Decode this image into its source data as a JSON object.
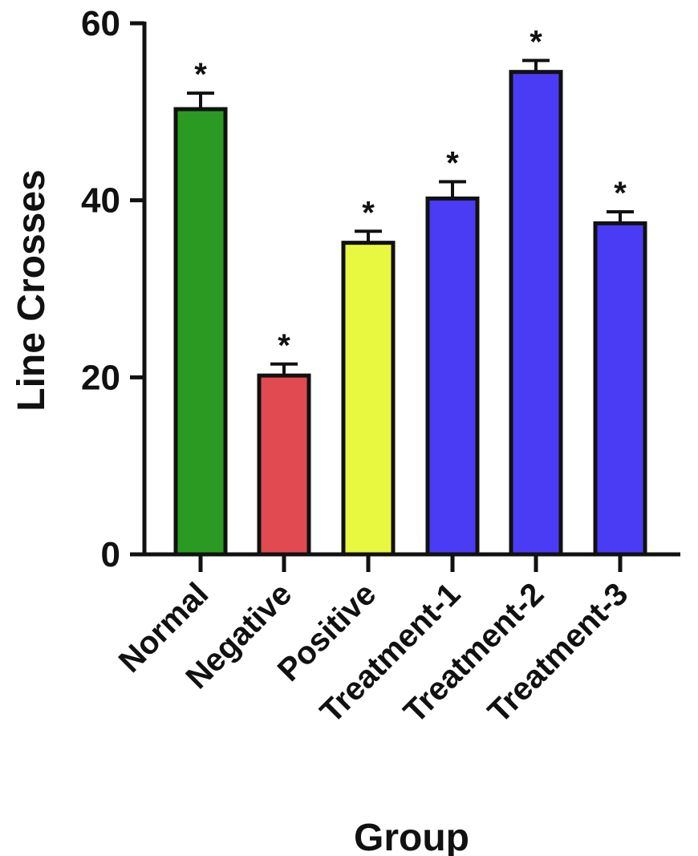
{
  "chart_data": {
    "type": "bar",
    "xlabel": "Group",
    "ylabel": "Line Crosses",
    "ylim": [
      0,
      60
    ],
    "yticks": [
      0,
      20,
      40,
      60
    ],
    "categories": [
      "Normal",
      "Negative",
      "Positive",
      "Treatment-1",
      "Treatment-2",
      "Treatment-3"
    ],
    "values": [
      50.3,
      20.2,
      35.2,
      40.2,
      54.5,
      37.4
    ],
    "errors": [
      1.8,
      1.3,
      1.3,
      1.9,
      1.3,
      1.3
    ],
    "significance": [
      "*",
      "*",
      "*",
      "*",
      "*",
      "*"
    ],
    "colors": [
      "#2a9a22",
      "#e24a52",
      "#e8f840",
      "#4a3cf5",
      "#4a3cf5",
      "#4a3cf5"
    ],
    "grid": false,
    "legend": "none"
  }
}
